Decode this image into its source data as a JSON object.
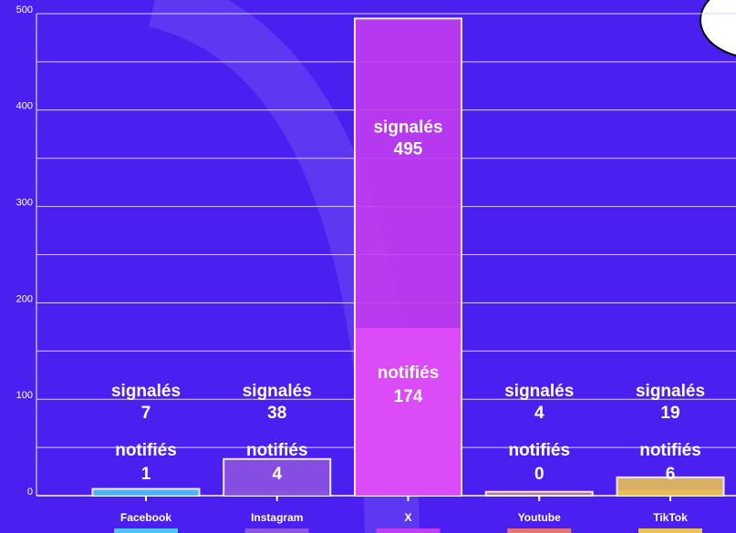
{
  "chart_data": {
    "type": "bar",
    "categories": [
      "Facebook",
      "Instagram",
      "X",
      "Youtube",
      "TikTok"
    ],
    "series": [
      {
        "name": "signalés",
        "values": [
          7,
          38,
          495,
          4,
          19
        ]
      },
      {
        "name": "notifiés",
        "values": [
          1,
          4,
          174,
          0,
          6
        ]
      }
    ],
    "colors": [
      "#4fc3f7",
      "#8c52e0",
      "#c23cf0",
      "#e57373",
      "#e8bf55"
    ],
    "overlay_color": "#e04ef8",
    "ylim": [
      0,
      500
    ],
    "yticks": [
      0,
      100,
      200,
      300,
      400,
      500
    ],
    "minor_yticks": [
      50,
      150,
      250,
      350,
      450
    ],
    "grid": true
  }
}
